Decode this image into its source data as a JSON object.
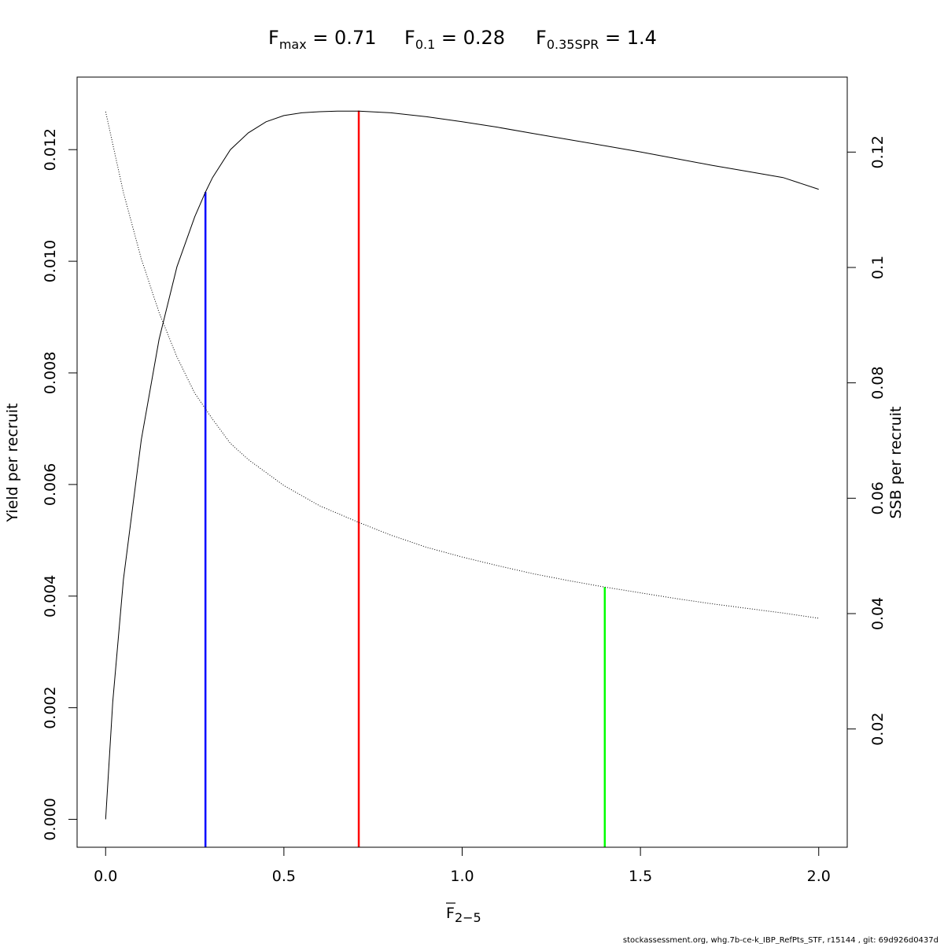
{
  "chart_data": {
    "type": "line",
    "title_parts": [
      {
        "main": "F",
        "sub": "max",
        "rest": " = 0.71"
      },
      {
        "main": "F",
        "sub": "0.1",
        "rest": " = 0.28"
      },
      {
        "main": "F",
        "sub": "0.35SPR",
        "rest": " = 1.4"
      }
    ],
    "xlabel": {
      "main": "F",
      "sub": "2−5",
      "overline": true
    },
    "ylabel": "Yield per recruit",
    "y2label": "SSB per recruit",
    "xlim": [
      -0.08,
      2.08
    ],
    "ylim": [
      -0.0005,
      0.0133
    ],
    "y2lim": [
      -0.0005,
      0.133
    ],
    "x_ticks": [
      0.0,
      0.5,
      1.0,
      1.5,
      2.0
    ],
    "x_tick_labels": [
      "0.0",
      "0.5",
      "1.0",
      "1.5",
      "2.0"
    ],
    "y_ticks": [
      0.0,
      0.002,
      0.004,
      0.006,
      0.008,
      0.01,
      0.012
    ],
    "y_tick_labels": [
      "0.000",
      "0.002",
      "0.004",
      "0.006",
      "0.008",
      "0.010",
      "0.012"
    ],
    "y2_ticks": [
      0.02,
      0.04,
      0.06,
      0.08,
      0.1,
      0.12
    ],
    "y2_tick_labels": [
      "0.02",
      "0.04",
      "0.06",
      "0.08",
      "0.1",
      "0.12"
    ],
    "series": [
      {
        "axis": "left",
        "style": "solid",
        "color": "#000000",
        "x": [
          0.0,
          0.02,
          0.05,
          0.1,
          0.15,
          0.2,
          0.25,
          0.28,
          0.3,
          0.35,
          0.4,
          0.45,
          0.5,
          0.55,
          0.6,
          0.65,
          0.71,
          0.8,
          0.9,
          1.0,
          1.1,
          1.2,
          1.3,
          1.4,
          1.5,
          1.6,
          1.7,
          1.8,
          1.9,
          2.0
        ],
        "values": [
          0.0,
          0.0021,
          0.0043,
          0.0068,
          0.0086,
          0.0099,
          0.0108,
          0.01124,
          0.0115,
          0.012,
          0.0123,
          0.0125,
          0.01261,
          0.01266,
          0.01268,
          0.01269,
          0.01269,
          0.01266,
          0.01259,
          0.0125,
          0.0124,
          0.01229,
          0.01218,
          0.01207,
          0.01196,
          0.01184,
          0.01172,
          0.01161,
          0.0115,
          0.01129
        ]
      },
      {
        "axis": "right",
        "style": "dotted",
        "color": "#000000",
        "x": [
          0.0,
          0.05,
          0.1,
          0.15,
          0.2,
          0.25,
          0.28,
          0.3,
          0.35,
          0.4,
          0.5,
          0.6,
          0.71,
          0.8,
          0.9,
          1.0,
          1.1,
          1.2,
          1.3,
          1.4,
          1.5,
          1.6,
          1.7,
          1.8,
          1.9,
          2.0
        ],
        "values": [
          0.127,
          0.113,
          0.1015,
          0.0922,
          0.0845,
          0.0782,
          0.0755,
          0.0737,
          0.0695,
          0.0667,
          0.0622,
          0.0587,
          0.0558,
          0.0536,
          0.0515,
          0.0498,
          0.0483,
          0.0469,
          0.0457,
          0.0446,
          0.0436,
          0.0426,
          0.0417,
          0.0409,
          0.0401,
          0.0392
        ]
      }
    ],
    "reference_lines": [
      {
        "x": 0.71,
        "to": 0.0127,
        "axis": "left",
        "color": "#ff0000"
      },
      {
        "x": 0.28,
        "to": 0.01124,
        "axis": "left",
        "color": "#0000ff"
      },
      {
        "x": 1.4,
        "to": 0.0446,
        "axis": "right",
        "color": "#00ff00"
      }
    ],
    "footer": "stockassessment.org, whg.7b-ce-k_IBP_RefPts_STF, r15144 , git: 69d926d0437d"
  }
}
